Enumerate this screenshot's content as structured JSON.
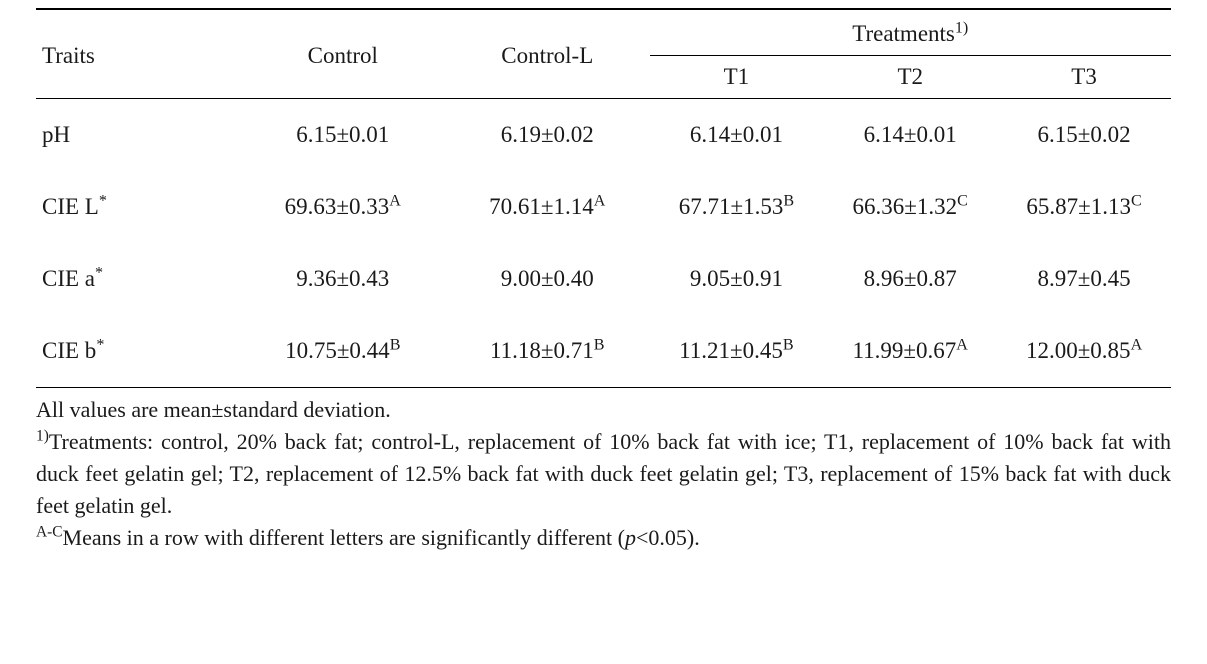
{
  "table": {
    "font_family": "Times New Roman",
    "font_size_pt": 17,
    "text_color": "#1a1a1a",
    "background_color": "#ffffff",
    "rule_color": "#000000",
    "top_rule_style": "double",
    "columns": [
      {
        "key": "traits",
        "label": "Traits",
        "align": "left",
        "width_pct": 18
      },
      {
        "key": "control",
        "label": "Control",
        "align": "center",
        "width_pct": 18
      },
      {
        "key": "control_l",
        "label": "Control-L",
        "align": "center",
        "width_pct": 18
      },
      {
        "key": "t1",
        "label": "T1",
        "align": "center",
        "width_pct": 15.3
      },
      {
        "key": "t2",
        "label": "T2",
        "align": "center",
        "width_pct": 15.3
      },
      {
        "key": "t3",
        "label": "T3",
        "align": "center",
        "width_pct": 15.3
      }
    ],
    "spanner": {
      "label": "Treatments",
      "sup": "1)",
      "covers": [
        "t1",
        "t2",
        "t3"
      ]
    },
    "rows": [
      {
        "trait": "pH",
        "trait_sup": "",
        "cells": [
          {
            "val": "6.15±0.01",
            "sup": ""
          },
          {
            "val": "6.19±0.02",
            "sup": ""
          },
          {
            "val": "6.14±0.01",
            "sup": ""
          },
          {
            "val": "6.14±0.01",
            "sup": ""
          },
          {
            "val": "6.15±0.02",
            "sup": ""
          }
        ]
      },
      {
        "trait": "CIE L",
        "trait_sup": "*",
        "cells": [
          {
            "val": "69.63±0.33",
            "sup": "A"
          },
          {
            "val": "70.61±1.14",
            "sup": "A"
          },
          {
            "val": "67.71±1.53",
            "sup": "B"
          },
          {
            "val": "66.36±1.32",
            "sup": "C"
          },
          {
            "val": "65.87±1.13",
            "sup": "C"
          }
        ]
      },
      {
        "trait": "CIE a",
        "trait_sup": "*",
        "cells": [
          {
            "val": "9.36±0.43",
            "sup": ""
          },
          {
            "val": "9.00±0.40",
            "sup": ""
          },
          {
            "val": "9.05±0.91",
            "sup": ""
          },
          {
            "val": "8.96±0.87",
            "sup": ""
          },
          {
            "val": "8.97±0.45",
            "sup": ""
          }
        ]
      },
      {
        "trait": "CIE b",
        "trait_sup": "*",
        "cells": [
          {
            "val": "10.75±0.44",
            "sup": "B"
          },
          {
            "val": "11.18±0.71",
            "sup": "B"
          },
          {
            "val": "11.21±0.45",
            "sup": "B"
          },
          {
            "val": "11.99±0.67",
            "sup": "A"
          },
          {
            "val": "12.00±0.85",
            "sup": "A"
          }
        ]
      }
    ]
  },
  "footnotes": {
    "font_size_pt": 16,
    "line1": "All values are mean±standard deviation.",
    "line2_sup": "1)",
    "line2": "Treatments: control, 20% back fat; control-L, replacement of 10% back fat with ice; T1, replacement of 10% back fat with duck feet gelatin gel; T2, replacement of 12.5% back fat with duck feet gelatin gel; T3, replacement of 15% back fat with duck feet gelatin gel.",
    "line3_sup": "A-C",
    "line3_a": "Means in a row with different letters are significantly different (",
    "line3_p": "p",
    "line3_b": "<0.05)."
  }
}
